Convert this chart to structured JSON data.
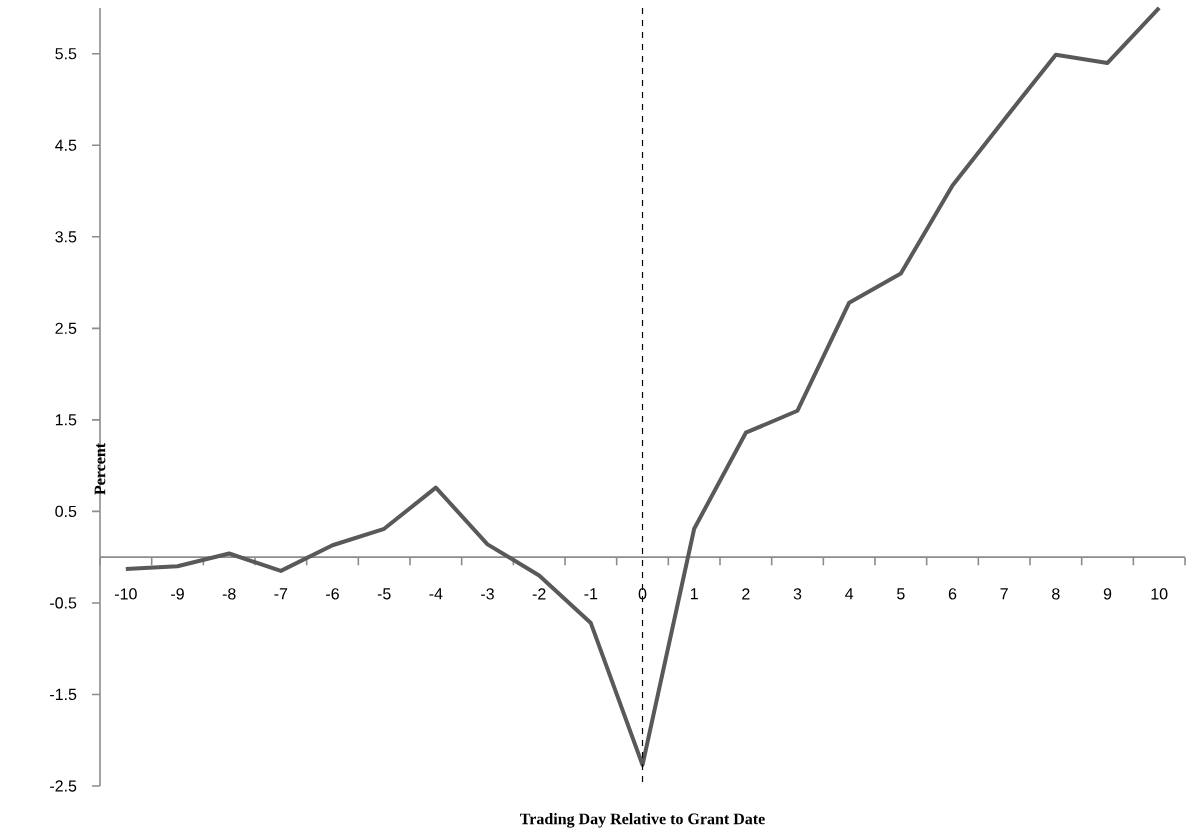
{
  "chart_data": {
    "type": "line",
    "xlabel": "Trading Day Relative to Grant Date",
    "ylabel": "Percent",
    "categories": [
      "-10",
      "-9",
      "-8",
      "-7",
      "-6",
      "-5",
      "-4",
      "-3",
      "-2",
      "-1",
      "0",
      "1",
      "2",
      "3",
      "4",
      "5",
      "6",
      "7",
      "8",
      "9",
      "10"
    ],
    "series": [
      {
        "color": "#595959",
        "values": [
          -0.13,
          -0.1,
          0.04,
          -0.15,
          0.13,
          0.31,
          0.76,
          0.14,
          -0.2,
          -0.72,
          -2.27,
          0.31,
          1.36,
          1.6,
          2.78,
          3.1,
          4.06,
          4.78,
          5.49,
          5.4,
          6.0
        ]
      }
    ],
    "ylim": [
      -2.5,
      6.0
    ],
    "yticks": [
      -2.5,
      -1.5,
      -0.5,
      0.5,
      1.5,
      2.5,
      3.5,
      4.5,
      5.5
    ],
    "ref_lines": [
      {
        "axis": "x",
        "value": "0",
        "color": "#000000",
        "line_style": "dashed"
      }
    ],
    "grid": false,
    "line_style": "solid"
  }
}
